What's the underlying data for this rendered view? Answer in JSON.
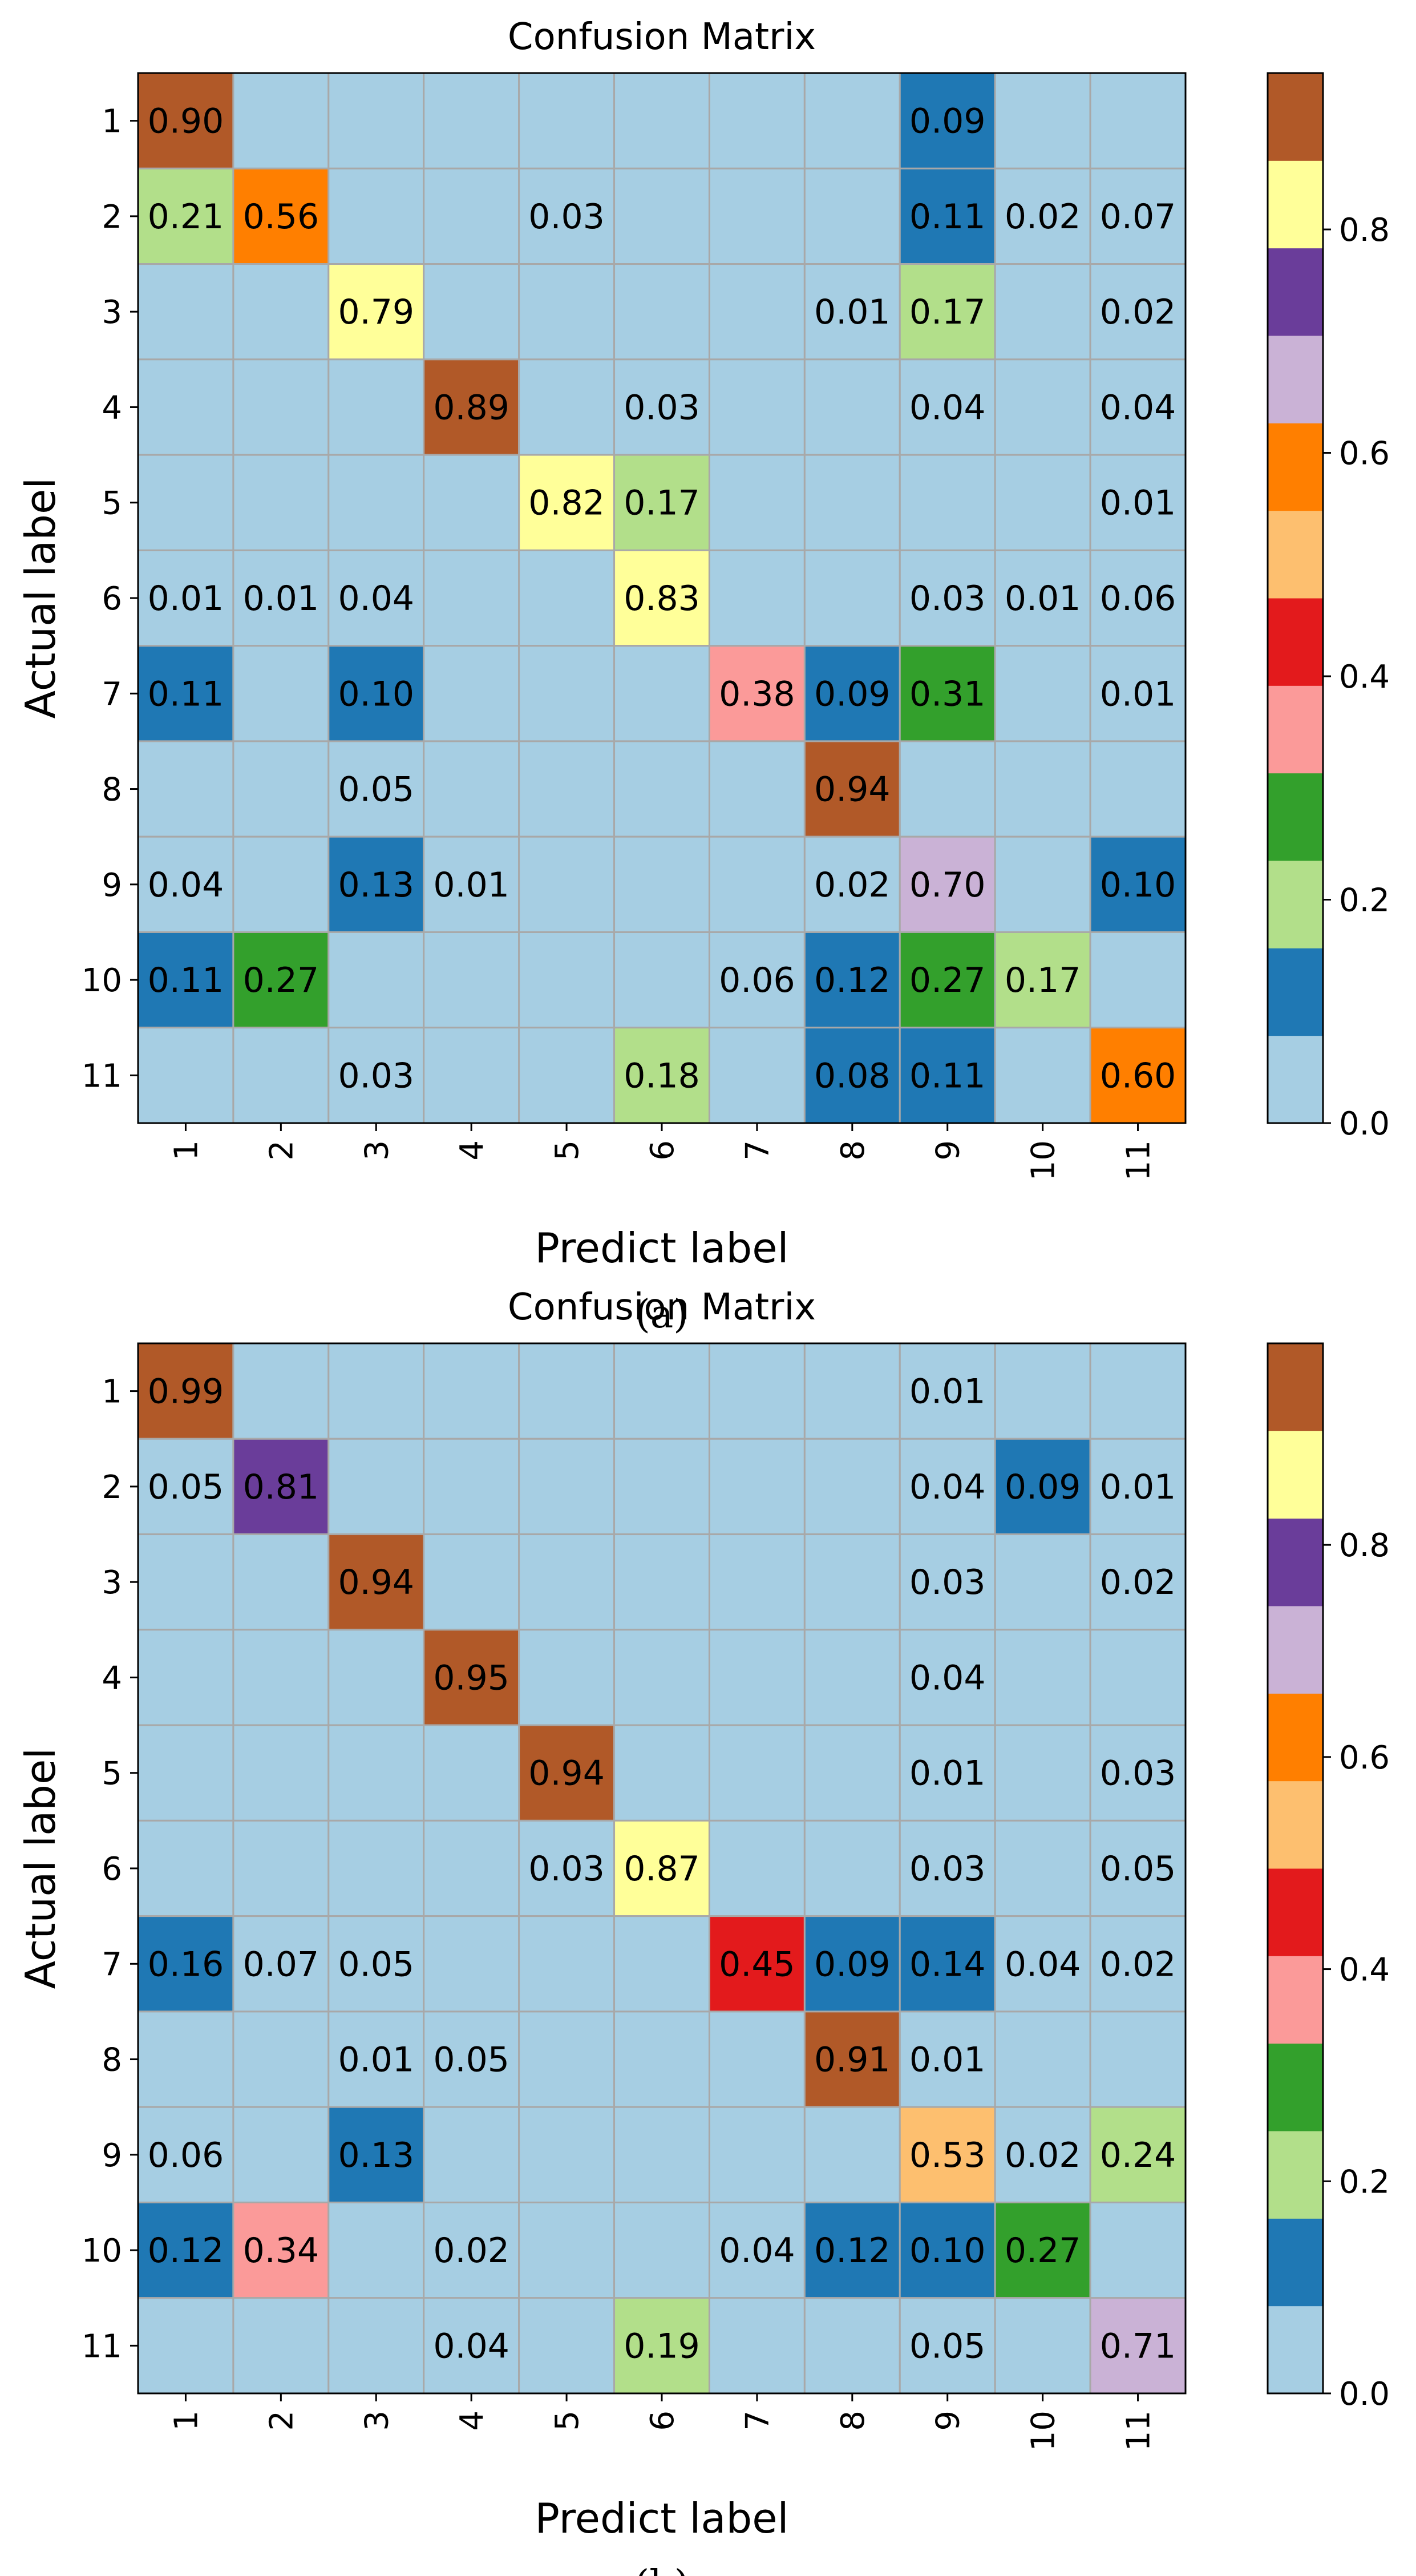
{
  "chart_data": [
    {
      "type": "heatmap",
      "panel_label": "(a)",
      "title": "Confusion Matrix",
      "xlabel": "Predict label",
      "ylabel": "Actual label",
      "x_ticks": [
        "1",
        "2",
        "3",
        "4",
        "5",
        "6",
        "7",
        "8",
        "9",
        "10",
        "11"
      ],
      "y_ticks": [
        "1",
        "2",
        "3",
        "4",
        "5",
        "6",
        "7",
        "8",
        "9",
        "10",
        "11"
      ],
      "colorbar": {
        "range": [
          0.0,
          0.94
        ],
        "ticks": [
          "0.0",
          "0.2",
          "0.4",
          "0.6",
          "0.8"
        ],
        "tick_values": [
          0.0,
          0.2,
          0.4,
          0.6,
          0.8
        ]
      },
      "cells": [
        [
          "0.90",
          "",
          "",
          "",
          "",
          "",
          "",
          "",
          "0.09",
          "",
          ""
        ],
        [
          "0.21",
          "0.56",
          "",
          "",
          "0.03",
          "",
          "",
          "",
          "0.11",
          "0.02",
          "0.07"
        ],
        [
          "",
          "",
          "0.79",
          "",
          "",
          "",
          "",
          "0.01",
          "0.17",
          "",
          "0.02"
        ],
        [
          "",
          "",
          "",
          "0.89",
          "",
          "0.03",
          "",
          "",
          "0.04",
          "",
          "0.04"
        ],
        [
          "",
          "",
          "",
          "",
          "0.82",
          "0.17",
          "",
          "",
          "",
          "",
          "0.01"
        ],
        [
          "0.01",
          "0.01",
          "0.04",
          "",
          "",
          "0.83",
          "",
          "",
          "0.03",
          "0.01",
          "0.06"
        ],
        [
          "0.11",
          "",
          "0.10",
          "",
          "",
          "",
          "0.38",
          "0.09",
          "0.31",
          "",
          "0.01"
        ],
        [
          "",
          "",
          "0.05",
          "",
          "",
          "",
          "",
          "0.94",
          "",
          "",
          ""
        ],
        [
          "0.04",
          "",
          "0.13",
          "0.01",
          "",
          "",
          "",
          "0.02",
          "0.70",
          "",
          "0.10"
        ],
        [
          "0.11",
          "0.27",
          "",
          "",
          "",
          "",
          "0.06",
          "0.12",
          "0.27",
          "0.17",
          ""
        ],
        [
          "",
          "",
          "0.03",
          "",
          "",
          "0.18",
          "",
          "0.08",
          "0.11",
          "",
          "0.60"
        ]
      ],
      "cell_colors": [
        [
          "#b15928",
          "#a6cee3",
          "#a6cee3",
          "#a6cee3",
          "#a6cee3",
          "#a6cee3",
          "#a6cee3",
          "#a6cee3",
          "#1f78b4",
          "#a6cee3",
          "#a6cee3"
        ],
        [
          "#b2df8a",
          "#ff7f00",
          "#a6cee3",
          "#a6cee3",
          "#a6cee3",
          "#a6cee3",
          "#a6cee3",
          "#a6cee3",
          "#1f78b4",
          "#a6cee3",
          "#a6cee3"
        ],
        [
          "#a6cee3",
          "#a6cee3",
          "#ffff99",
          "#a6cee3",
          "#a6cee3",
          "#a6cee3",
          "#a6cee3",
          "#a6cee3",
          "#b2df8a",
          "#a6cee3",
          "#a6cee3"
        ],
        [
          "#a6cee3",
          "#a6cee3",
          "#a6cee3",
          "#b15928",
          "#a6cee3",
          "#a6cee3",
          "#a6cee3",
          "#a6cee3",
          "#a6cee3",
          "#a6cee3",
          "#a6cee3"
        ],
        [
          "#a6cee3",
          "#a6cee3",
          "#a6cee3",
          "#a6cee3",
          "#ffff99",
          "#b2df8a",
          "#a6cee3",
          "#a6cee3",
          "#a6cee3",
          "#a6cee3",
          "#a6cee3"
        ],
        [
          "#a6cee3",
          "#a6cee3",
          "#a6cee3",
          "#a6cee3",
          "#a6cee3",
          "#ffff99",
          "#a6cee3",
          "#a6cee3",
          "#a6cee3",
          "#a6cee3",
          "#a6cee3"
        ],
        [
          "#1f78b4",
          "#a6cee3",
          "#1f78b4",
          "#a6cee3",
          "#a6cee3",
          "#a6cee3",
          "#fb9a99",
          "#1f78b4",
          "#33a02c",
          "#a6cee3",
          "#a6cee3"
        ],
        [
          "#a6cee3",
          "#a6cee3",
          "#a6cee3",
          "#a6cee3",
          "#a6cee3",
          "#a6cee3",
          "#a6cee3",
          "#b15928",
          "#a6cee3",
          "#a6cee3",
          "#a6cee3"
        ],
        [
          "#a6cee3",
          "#a6cee3",
          "#1f78b4",
          "#a6cee3",
          "#a6cee3",
          "#a6cee3",
          "#a6cee3",
          "#a6cee3",
          "#cab2d6",
          "#a6cee3",
          "#1f78b4"
        ],
        [
          "#1f78b4",
          "#33a02c",
          "#a6cee3",
          "#a6cee3",
          "#a6cee3",
          "#a6cee3",
          "#a6cee3",
          "#1f78b4",
          "#33a02c",
          "#b2df8a",
          "#a6cee3"
        ],
        [
          "#a6cee3",
          "#a6cee3",
          "#a6cee3",
          "#a6cee3",
          "#a6cee3",
          "#b2df8a",
          "#a6cee3",
          "#1f78b4",
          "#1f78b4",
          "#a6cee3",
          "#ff7f00"
        ]
      ]
    },
    {
      "type": "heatmap",
      "panel_label": "(b)",
      "title": "Confusion Matrix",
      "xlabel": "Predict label",
      "ylabel": "Actual label",
      "x_ticks": [
        "1",
        "2",
        "3",
        "4",
        "5",
        "6",
        "7",
        "8",
        "9",
        "10",
        "11"
      ],
      "y_ticks": [
        "1",
        "2",
        "3",
        "4",
        "5",
        "6",
        "7",
        "8",
        "9",
        "10",
        "11"
      ],
      "colorbar": {
        "range": [
          0.0,
          0.99
        ],
        "ticks": [
          "0.0",
          "0.2",
          "0.4",
          "0.6",
          "0.8"
        ],
        "tick_values": [
          0.0,
          0.2,
          0.4,
          0.6,
          0.8
        ]
      },
      "cells": [
        [
          "0.99",
          "",
          "",
          "",
          "",
          "",
          "",
          "",
          "0.01",
          "",
          ""
        ],
        [
          "0.05",
          "0.81",
          "",
          "",
          "",
          "",
          "",
          "",
          "0.04",
          "0.09",
          "0.01"
        ],
        [
          "",
          "",
          "0.94",
          "",
          "",
          "",
          "",
          "",
          "0.03",
          "",
          "0.02"
        ],
        [
          "",
          "",
          "",
          "0.95",
          "",
          "",
          "",
          "",
          "0.04",
          "",
          ""
        ],
        [
          "",
          "",
          "",
          "",
          "0.94",
          "",
          "",
          "",
          "0.01",
          "",
          "0.03"
        ],
        [
          "",
          "",
          "",
          "",
          "0.03",
          "0.87",
          "",
          "",
          "0.03",
          "",
          "0.05"
        ],
        [
          "0.16",
          "0.07",
          "0.05",
          "",
          "",
          "",
          "0.45",
          "0.09",
          "0.14",
          "0.04",
          "0.02"
        ],
        [
          "",
          "",
          "0.01",
          "0.05",
          "",
          "",
          "",
          "0.91",
          "0.01",
          "",
          ""
        ],
        [
          "0.06",
          "",
          "0.13",
          "",
          "",
          "",
          "",
          "",
          "0.53",
          "0.02",
          "0.24"
        ],
        [
          "0.12",
          "0.34",
          "",
          "0.02",
          "",
          "",
          "0.04",
          "0.12",
          "0.10",
          "0.27",
          ""
        ],
        [
          "",
          "",
          "",
          "0.04",
          "",
          "0.19",
          "",
          "",
          "0.05",
          "",
          "0.71"
        ]
      ],
      "cell_colors": [
        [
          "#b15928",
          "#a6cee3",
          "#a6cee3",
          "#a6cee3",
          "#a6cee3",
          "#a6cee3",
          "#a6cee3",
          "#a6cee3",
          "#a6cee3",
          "#a6cee3",
          "#a6cee3"
        ],
        [
          "#a6cee3",
          "#6a3d9a",
          "#a6cee3",
          "#a6cee3",
          "#a6cee3",
          "#a6cee3",
          "#a6cee3",
          "#a6cee3",
          "#a6cee3",
          "#1f78b4",
          "#a6cee3"
        ],
        [
          "#a6cee3",
          "#a6cee3",
          "#b15928",
          "#a6cee3",
          "#a6cee3",
          "#a6cee3",
          "#a6cee3",
          "#a6cee3",
          "#a6cee3",
          "#a6cee3",
          "#a6cee3"
        ],
        [
          "#a6cee3",
          "#a6cee3",
          "#a6cee3",
          "#b15928",
          "#a6cee3",
          "#a6cee3",
          "#a6cee3",
          "#a6cee3",
          "#a6cee3",
          "#a6cee3",
          "#a6cee3"
        ],
        [
          "#a6cee3",
          "#a6cee3",
          "#a6cee3",
          "#a6cee3",
          "#b15928",
          "#a6cee3",
          "#a6cee3",
          "#a6cee3",
          "#a6cee3",
          "#a6cee3",
          "#a6cee3"
        ],
        [
          "#a6cee3",
          "#a6cee3",
          "#a6cee3",
          "#a6cee3",
          "#a6cee3",
          "#ffff99",
          "#a6cee3",
          "#a6cee3",
          "#a6cee3",
          "#a6cee3",
          "#a6cee3"
        ],
        [
          "#1f78b4",
          "#a6cee3",
          "#a6cee3",
          "#a6cee3",
          "#a6cee3",
          "#a6cee3",
          "#e31a1c",
          "#1f78b4",
          "#1f78b4",
          "#a6cee3",
          "#a6cee3"
        ],
        [
          "#a6cee3",
          "#a6cee3",
          "#a6cee3",
          "#a6cee3",
          "#a6cee3",
          "#a6cee3",
          "#a6cee3",
          "#b15928",
          "#a6cee3",
          "#a6cee3",
          "#a6cee3"
        ],
        [
          "#a6cee3",
          "#a6cee3",
          "#1f78b4",
          "#a6cee3",
          "#a6cee3",
          "#a6cee3",
          "#a6cee3",
          "#a6cee3",
          "#fdbf6f",
          "#a6cee3",
          "#b2df8a"
        ],
        [
          "#1f78b4",
          "#fb9a99",
          "#a6cee3",
          "#a6cee3",
          "#a6cee3",
          "#a6cee3",
          "#a6cee3",
          "#1f78b4",
          "#1f78b4",
          "#33a02c",
          "#a6cee3"
        ],
        [
          "#a6cee3",
          "#a6cee3",
          "#a6cee3",
          "#a6cee3",
          "#a6cee3",
          "#b2df8a",
          "#a6cee3",
          "#a6cee3",
          "#a6cee3",
          "#a6cee3",
          "#cab2d6"
        ]
      ]
    }
  ],
  "colorbar_palette": [
    "#a6cee3",
    "#1f78b4",
    "#b2df8a",
    "#33a02c",
    "#fb9a99",
    "#e31a1c",
    "#fdbf6f",
    "#ff7f00",
    "#cab2d6",
    "#6a3d9a",
    "#ffff99",
    "#b15928"
  ]
}
